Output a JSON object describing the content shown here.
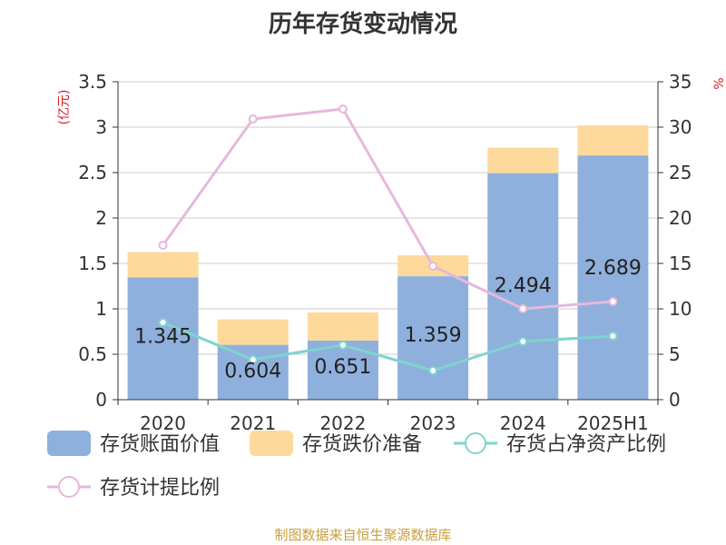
{
  "chart_data": {
    "type": "bar",
    "title": "历年存货变动情况",
    "categories": [
      "2020",
      "2021",
      "2022",
      "2023",
      "2024",
      "2025H1"
    ],
    "y_left": {
      "unit_label": "(亿元)",
      "ylim": [
        0,
        3.5
      ],
      "ticks": [
        "0",
        "0.5",
        "1",
        "1.5",
        "2",
        "2.5",
        "3",
        "3.5"
      ]
    },
    "y_right": {
      "unit_label": "%",
      "ylim": [
        0,
        35
      ],
      "ticks": [
        "0",
        "5",
        "10",
        "15",
        "20",
        "25",
        "30",
        "35"
      ]
    },
    "series": [
      {
        "name": "存货账面价值",
        "kind": "bar-stack",
        "axis": "left",
        "color": "#8fb0dc",
        "values": [
          1.345,
          0.604,
          0.651,
          1.359,
          2.494,
          2.689
        ],
        "labels": [
          "1.345",
          "0.604",
          "0.651",
          "1.359",
          "2.494",
          "2.689"
        ]
      },
      {
        "name": "存货跌价准备",
        "kind": "bar-stack",
        "axis": "left",
        "color": "#fdd99b",
        "values": [
          0.28,
          0.28,
          0.31,
          0.23,
          0.28,
          0.33
        ]
      },
      {
        "name": "存货占净资产比例",
        "kind": "line",
        "axis": "right",
        "color": "#7fd3cf",
        "values": [
          8.5,
          4.4,
          6.0,
          3.2,
          6.4,
          7.0
        ]
      },
      {
        "name": "存货计提比例",
        "kind": "line",
        "axis": "right",
        "color": "#e6b8dc",
        "values": [
          17.0,
          30.9,
          32.0,
          14.7,
          10.0,
          10.8
        ]
      }
    ],
    "grid": true,
    "legend_position": "bottom"
  },
  "footer": {
    "source": "制图数据来自恒生聚源数据库"
  }
}
